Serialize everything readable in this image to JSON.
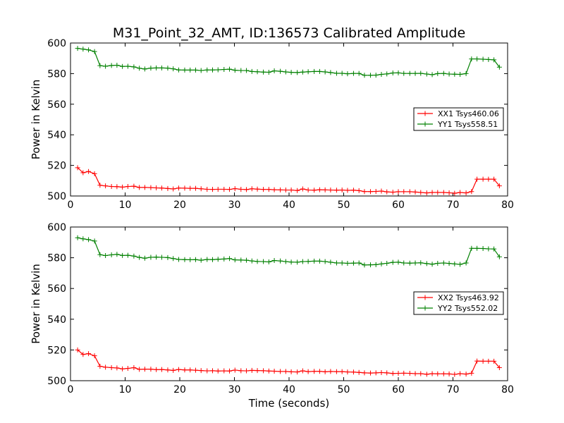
{
  "chart_data": {
    "title": "M31_Point_32_AMT, ID:136573 Calibrated Amplitude",
    "xlabel": "Time (seconds)",
    "panels": [
      {
        "type": "line",
        "ylabel": "Power in Kelvin",
        "xlim": [
          0,
          80
        ],
        "ylim": [
          500,
          600
        ],
        "xticks": [
          0,
          10,
          20,
          30,
          40,
          50,
          60,
          70,
          80
        ],
        "yticks": [
          500,
          520,
          540,
          560,
          580,
          600
        ],
        "show_xticklabels": true,
        "show_xlabel": false,
        "grid": false,
        "legend_position": "center-right",
        "series": [
          {
            "name": "XX1 Tsys460.06",
            "color": "#ff0000",
            "marker": "+",
            "x": [
              1.3,
              2.3,
              3.3,
              4.4,
              5.4,
              6.4,
              7.5,
              8.5,
              9.5,
              10.5,
              11.6,
              12.6,
              13.6,
              14.7,
              15.7,
              16.7,
              17.8,
              18.8,
              19.8,
              20.9,
              21.9,
              22.9,
              23.9,
              25.0,
              26.0,
              27.0,
              28.1,
              29.1,
              30.1,
              31.2,
              32.2,
              33.2,
              34.2,
              35.3,
              36.3,
              37.3,
              38.4,
              39.4,
              40.4,
              41.5,
              42.5,
              43.5,
              44.6,
              45.6,
              46.6,
              47.6,
              48.7,
              49.7,
              50.7,
              51.8,
              52.8,
              53.8,
              54.9,
              55.9,
              56.9,
              57.9,
              59.0,
              60.0,
              61.0,
              62.1,
              63.1,
              64.1,
              65.2,
              66.2,
              67.2,
              68.3,
              69.3,
              70.3,
              71.3,
              72.4,
              73.4,
              74.4,
              75.5,
              76.5,
              77.5,
              78.5
            ],
            "y": [
              518.5,
              515.2,
              516.0,
              514.6,
              507.0,
              506.6,
              506.2,
              506.1,
              505.8,
              506.2,
              506.4,
              505.6,
              505.6,
              505.5,
              505.3,
              505.2,
              504.9,
              504.6,
              505.2,
              505.1,
              505.0,
              505.0,
              504.7,
              504.4,
              504.3,
              504.4,
              504.4,
              504.3,
              504.8,
              504.4,
              504.2,
              504.7,
              504.5,
              504.3,
              504.3,
              504.1,
              504.0,
              503.9,
              503.9,
              503.6,
              504.6,
              503.9,
              503.8,
              504.1,
              504.0,
              503.9,
              503.8,
              503.9,
              503.7,
              503.8,
              503.5,
              502.9,
              502.9,
              503.0,
              503.2,
              502.7,
              502.5,
              502.8,
              502.8,
              502.8,
              502.6,
              502.3,
              502.0,
              502.3,
              502.3,
              502.3,
              502.1,
              501.8,
              502.3,
              502.0,
              502.9,
              511.0,
              511.0,
              511.0,
              511.0,
              506.6
            ]
          },
          {
            "name": "YY1 Tsys558.51",
            "color": "#008000",
            "marker": "+",
            "x": [
              1.3,
              2.3,
              3.3,
              4.4,
              5.4,
              6.4,
              7.5,
              8.5,
              9.5,
              10.5,
              11.6,
              12.6,
              13.6,
              14.7,
              15.7,
              16.7,
              17.8,
              18.8,
              19.8,
              20.9,
              21.9,
              22.9,
              23.9,
              25.0,
              26.0,
              27.0,
              28.1,
              29.1,
              30.1,
              31.2,
              32.2,
              33.2,
              34.2,
              35.3,
              36.3,
              37.3,
              38.4,
              39.4,
              40.4,
              41.5,
              42.5,
              43.5,
              44.6,
              45.6,
              46.6,
              47.6,
              48.7,
              49.7,
              50.7,
              51.8,
              52.8,
              53.8,
              54.9,
              55.9,
              56.9,
              57.9,
              59.0,
              60.0,
              61.0,
              62.1,
              63.1,
              64.1,
              65.2,
              66.2,
              67.2,
              68.3,
              69.3,
              70.3,
              71.3,
              72.4,
              73.4,
              74.4,
              75.5,
              76.5,
              77.5,
              78.5
            ],
            "y": [
              596.5,
              596.0,
              595.5,
              594.4,
              585.2,
              584.8,
              585.3,
              585.5,
              584.7,
              584.8,
              584.4,
              583.5,
              583.0,
              583.6,
              583.7,
              583.7,
              583.6,
              583.1,
              582.4,
              582.3,
              582.3,
              582.3,
              582.0,
              582.4,
              582.4,
              582.5,
              582.7,
              582.9,
              582.2,
              582.0,
              582.0,
              581.4,
              581.2,
              581.0,
              580.9,
              581.8,
              581.5,
              581.1,
              580.8,
              580.7,
              581.0,
              581.2,
              581.4,
              581.4,
              581.1,
              580.7,
              580.2,
              580.2,
              579.9,
              580.1,
              580.1,
              578.9,
              578.9,
              579.0,
              579.5,
              579.8,
              580.4,
              580.5,
              580.1,
              580.1,
              580.1,
              580.2,
              579.7,
              579.3,
              580.0,
              580.1,
              579.7,
              579.6,
              579.5,
              580.0,
              589.6,
              589.6,
              589.4,
              589.2,
              589.0,
              584.2
            ]
          }
        ]
      },
      {
        "type": "line",
        "ylabel": "Power in Kelvin",
        "xlim": [
          0,
          80
        ],
        "ylim": [
          500,
          600
        ],
        "xticks": [
          0,
          10,
          20,
          30,
          40,
          50,
          60,
          70,
          80
        ],
        "yticks": [
          500,
          520,
          540,
          560,
          580,
          600
        ],
        "show_xticklabels": true,
        "show_xlabel": true,
        "grid": false,
        "legend_position": "center-right",
        "series": [
          {
            "name": "XX2 Tsys463.92",
            "color": "#ff0000",
            "marker": "+",
            "x": [
              1.3,
              2.3,
              3.3,
              4.4,
              5.4,
              6.4,
              7.5,
              8.5,
              9.5,
              10.5,
              11.6,
              12.6,
              13.6,
              14.7,
              15.7,
              16.7,
              17.8,
              18.8,
              19.8,
              20.9,
              21.9,
              22.9,
              23.9,
              25.0,
              26.0,
              27.0,
              28.1,
              29.1,
              30.1,
              31.2,
              32.2,
              33.2,
              34.2,
              35.3,
              36.3,
              37.3,
              38.4,
              39.4,
              40.4,
              41.5,
              42.5,
              43.5,
              44.6,
              45.6,
              46.6,
              47.6,
              48.7,
              49.7,
              50.7,
              51.8,
              52.8,
              53.8,
              54.9,
              55.9,
              56.9,
              57.9,
              59.0,
              60.0,
              61.0,
              62.1,
              63.1,
              64.1,
              65.2,
              66.2,
              67.2,
              68.3,
              69.3,
              70.3,
              71.3,
              72.4,
              73.4,
              74.4,
              75.5,
              76.5,
              77.5,
              78.5
            ],
            "y": [
              520.0,
              517.1,
              517.6,
              516.2,
              509.4,
              508.8,
              508.5,
              508.3,
              507.7,
              508.0,
              508.5,
              507.4,
              507.5,
              507.5,
              507.2,
              507.3,
              507.0,
              506.7,
              507.3,
              507.0,
              507.0,
              506.8,
              506.6,
              506.4,
              506.5,
              506.3,
              506.4,
              506.3,
              506.9,
              506.5,
              506.4,
              506.7,
              506.6,
              506.5,
              506.3,
              506.2,
              506.0,
              506.0,
              505.8,
              505.7,
              506.4,
              505.9,
              506.1,
              506.1,
              505.8,
              506.0,
              505.9,
              505.9,
              505.7,
              505.6,
              505.4,
              505.1,
              505.0,
              505.1,
              505.3,
              505.1,
              504.7,
              504.8,
              504.9,
              504.8,
              504.6,
              504.6,
              504.2,
              504.6,
              504.5,
              504.5,
              504.4,
              504.1,
              504.6,
              504.3,
              504.9,
              512.8,
              512.7,
              512.7,
              512.7,
              508.5
            ]
          },
          {
            "name": "YY2 Tsys552.02",
            "color": "#008000",
            "marker": "+",
            "x": [
              1.3,
              2.3,
              3.3,
              4.4,
              5.4,
              6.4,
              7.5,
              8.5,
              9.5,
              10.5,
              11.6,
              12.6,
              13.6,
              14.7,
              15.7,
              16.7,
              17.8,
              18.8,
              19.8,
              20.9,
              21.9,
              22.9,
              23.9,
              25.0,
              26.0,
              27.0,
              28.1,
              29.1,
              30.1,
              31.2,
              32.2,
              33.2,
              34.2,
              35.3,
              36.3,
              37.3,
              38.4,
              39.4,
              40.4,
              41.5,
              42.5,
              43.5,
              44.6,
              45.6,
              46.6,
              47.6,
              48.7,
              49.7,
              50.7,
              51.8,
              52.8,
              53.8,
              54.9,
              55.9,
              56.9,
              57.9,
              59.0,
              60.0,
              61.0,
              62.1,
              63.1,
              64.1,
              65.2,
              66.2,
              67.2,
              68.3,
              69.3,
              70.3,
              71.3,
              72.4,
              73.4,
              74.4,
              75.5,
              76.5,
              77.5,
              78.5
            ],
            "y": [
              593.0,
              592.3,
              591.8,
              590.9,
              582.0,
              581.4,
              581.9,
              582.2,
              581.5,
              581.6,
              581.1,
              580.2,
              579.7,
              580.3,
              580.4,
              580.3,
              580.1,
              579.5,
              578.9,
              578.8,
              578.7,
              578.8,
              578.4,
              578.9,
              578.8,
              579.0,
              579.2,
              579.5,
              578.6,
              578.5,
              578.4,
              577.9,
              577.6,
              577.5,
              577.3,
              578.2,
              577.9,
              577.5,
              577.2,
              577.1,
              577.5,
              577.6,
              577.8,
              577.8,
              577.5,
              577.1,
              576.6,
              576.6,
              576.4,
              576.5,
              576.6,
              575.3,
              575.4,
              575.5,
              576.0,
              576.4,
              577.0,
              577.1,
              576.6,
              576.5,
              576.6,
              576.7,
              576.2,
              575.8,
              576.4,
              576.6,
              576.3,
              576.0,
              575.7,
              576.6,
              586.1,
              586.1,
              586.0,
              585.8,
              585.7,
              580.6
            ]
          }
        ]
      }
    ]
  }
}
